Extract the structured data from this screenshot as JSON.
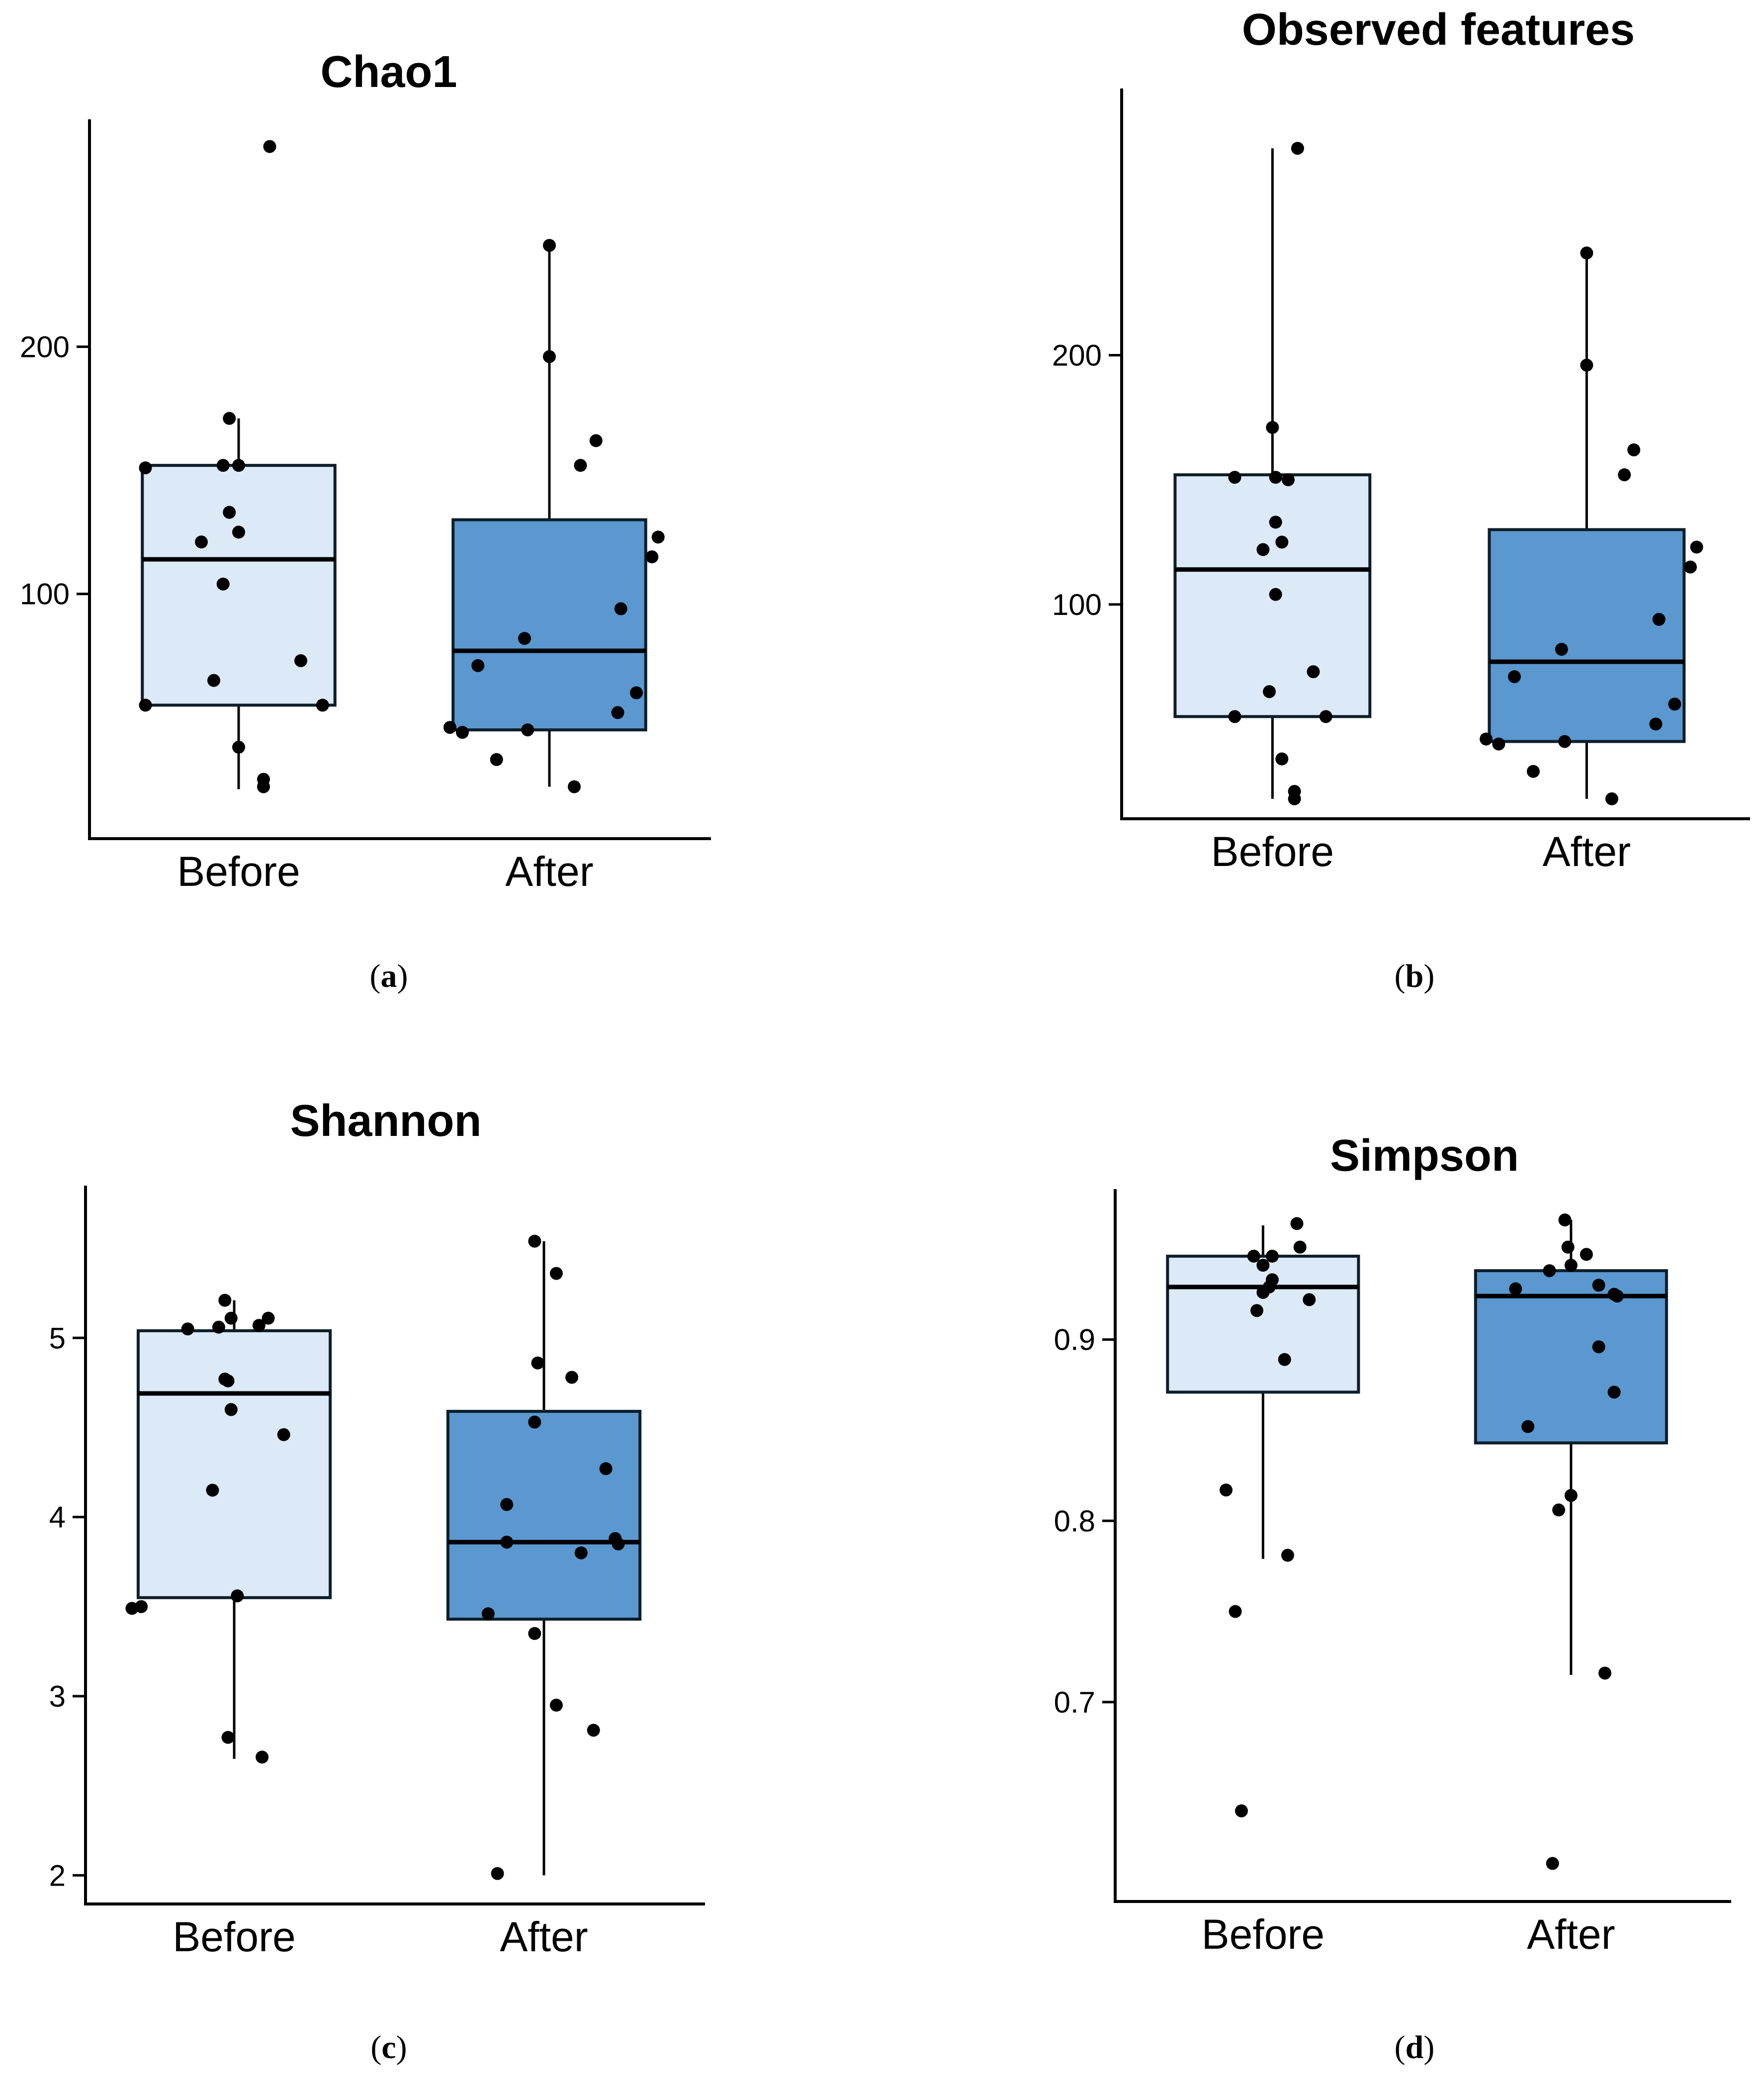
{
  "colors": {
    "before_fill": "#dce9f7",
    "after_fill": "#5a98cf",
    "point": "#000000"
  },
  "chart_data": [
    {
      "id": "a",
      "type": "box",
      "title": "Chao1",
      "caption": "a",
      "categories": [
        "Before",
        "After"
      ],
      "yticks": [
        100,
        200
      ],
      "ylim": [
        1,
        292
      ],
      "boxes": [
        {
          "name": "Before",
          "q1": 55,
          "median": 114,
          "q3": 152,
          "whisker_low": 21,
          "whisker_high": 171
        },
        {
          "name": "After",
          "q1": 45,
          "median": 77,
          "q3": 130,
          "whisker_low": 22,
          "whisker_high": 241
        }
      ],
      "points": [
        [
          {
            "j": -0.3,
            "y": 151
          },
          {
            "j": -0.05,
            "y": 152
          },
          {
            "j": 0.0,
            "y": 152
          },
          {
            "j": -0.03,
            "y": 171
          },
          {
            "j": 0.1,
            "y": 281
          },
          {
            "j": -0.03,
            "y": 133
          },
          {
            "j": 0.0,
            "y": 125
          },
          {
            "j": -0.12,
            "y": 121
          },
          {
            "j": -0.05,
            "y": 104
          },
          {
            "j": 0.2,
            "y": 73
          },
          {
            "j": -0.08,
            "y": 65
          },
          {
            "j": -0.3,
            "y": 55
          },
          {
            "j": 0.27,
            "y": 55
          },
          {
            "j": 0.0,
            "y": 38
          },
          {
            "j": 0.08,
            "y": 25
          },
          {
            "j": 0.08,
            "y": 22
          }
        ],
        [
          {
            "j": 0.0,
            "y": 241
          },
          {
            "j": 0.0,
            "y": 196
          },
          {
            "j": 0.15,
            "y": 162
          },
          {
            "j": 0.1,
            "y": 152
          },
          {
            "j": 0.35,
            "y": 123
          },
          {
            "j": 0.33,
            "y": 115
          },
          {
            "j": 0.23,
            "y": 94
          },
          {
            "j": -0.08,
            "y": 82
          },
          {
            "j": -0.23,
            "y": 71
          },
          {
            "j": 0.28,
            "y": 60
          },
          {
            "j": 0.22,
            "y": 52
          },
          {
            "j": -0.32,
            "y": 46
          },
          {
            "j": -0.28,
            "y": 44
          },
          {
            "j": -0.07,
            "y": 45
          },
          {
            "j": -0.17,
            "y": 33
          },
          {
            "j": 0.08,
            "y": 22
          }
        ]
      ]
    },
    {
      "id": "b",
      "type": "box",
      "title": "Observed features",
      "caption": "b",
      "categories": [
        "Before",
        "After"
      ],
      "yticks": [
        100,
        200
      ],
      "ylim": [
        14,
        307
      ],
      "boxes": [
        {
          "name": "Before",
          "q1": 55,
          "median": 114,
          "q3": 152,
          "whisker_low": 22,
          "whisker_high": 283
        },
        {
          "name": "After",
          "q1": 45,
          "median": 77,
          "q3": 130,
          "whisker_low": 22,
          "whisker_high": 241
        }
      ],
      "points": [
        [
          {
            "j": 0.08,
            "y": 283
          },
          {
            "j": 0.0,
            "y": 171
          },
          {
            "j": -0.12,
            "y": 151
          },
          {
            "j": 0.01,
            "y": 151
          },
          {
            "j": 0.05,
            "y": 150
          },
          {
            "j": 0.01,
            "y": 133
          },
          {
            "j": 0.03,
            "y": 125
          },
          {
            "j": -0.03,
            "y": 122
          },
          {
            "j": 0.01,
            "y": 104
          },
          {
            "j": 0.13,
            "y": 73
          },
          {
            "j": -0.01,
            "y": 65
          },
          {
            "j": -0.12,
            "y": 55
          },
          {
            "j": 0.17,
            "y": 55
          },
          {
            "j": 0.03,
            "y": 38
          },
          {
            "j": 0.07,
            "y": 25
          },
          {
            "j": 0.07,
            "y": 22
          }
        ],
        [
          {
            "j": 0.0,
            "y": 241
          },
          {
            "j": 0.0,
            "y": 196
          },
          {
            "j": 0.15,
            "y": 162
          },
          {
            "j": 0.12,
            "y": 152
          },
          {
            "j": 0.35,
            "y": 123
          },
          {
            "j": 0.33,
            "y": 115
          },
          {
            "j": 0.23,
            "y": 94
          },
          {
            "j": -0.08,
            "y": 82
          },
          {
            "j": -0.23,
            "y": 71
          },
          {
            "j": 0.28,
            "y": 60
          },
          {
            "j": 0.22,
            "y": 52
          },
          {
            "j": -0.32,
            "y": 46
          },
          {
            "j": -0.28,
            "y": 44
          },
          {
            "j": -0.07,
            "y": 45
          },
          {
            "j": -0.17,
            "y": 33
          },
          {
            "j": 0.08,
            "y": 22
          }
        ]
      ]
    },
    {
      "id": "c",
      "type": "box",
      "title": "Shannon",
      "caption": "c",
      "categories": [
        "Before",
        "After"
      ],
      "yticks": [
        2,
        3,
        4,
        5
      ],
      "ylim": [
        1.84,
        5.85
      ],
      "boxes": [
        {
          "name": "Before",
          "q1": 3.55,
          "median": 4.69,
          "q3": 5.04,
          "whisker_low": 2.65,
          "whisker_high": 5.21
        },
        {
          "name": "After",
          "q1": 3.43,
          "median": 3.86,
          "q3": 4.59,
          "whisker_low": 2.0,
          "whisker_high": 5.54
        }
      ],
      "points": [
        [
          {
            "j": -0.03,
            "y": 5.21
          },
          {
            "j": -0.15,
            "y": 5.05
          },
          {
            "j": -0.05,
            "y": 5.06
          },
          {
            "j": -0.01,
            "y": 5.11
          },
          {
            "j": 0.08,
            "y": 5.07
          },
          {
            "j": 0.11,
            "y": 5.11
          },
          {
            "j": -0.03,
            "y": 4.77
          },
          {
            "j": -0.02,
            "y": 4.76
          },
          {
            "j": -0.01,
            "y": 4.6
          },
          {
            "j": 0.16,
            "y": 4.46
          },
          {
            "j": -0.07,
            "y": 4.15
          },
          {
            "j": 0.01,
            "y": 3.56
          },
          {
            "j": -0.33,
            "y": 3.49
          },
          {
            "j": -0.3,
            "y": 3.5
          },
          {
            "j": -0.02,
            "y": 2.77
          },
          {
            "j": 0.09,
            "y": 2.66
          }
        ],
        [
          {
            "j": -0.03,
            "y": 5.54
          },
          {
            "j": 0.04,
            "y": 5.36
          },
          {
            "j": -0.02,
            "y": 4.86
          },
          {
            "j": 0.09,
            "y": 4.78
          },
          {
            "j": -0.03,
            "y": 4.53
          },
          {
            "j": 0.2,
            "y": 4.27
          },
          {
            "j": -0.12,
            "y": 4.07
          },
          {
            "j": 0.23,
            "y": 3.88
          },
          {
            "j": 0.24,
            "y": 3.85
          },
          {
            "j": -0.12,
            "y": 3.86
          },
          {
            "j": 0.12,
            "y": 3.8
          },
          {
            "j": -0.18,
            "y": 3.46
          },
          {
            "j": -0.03,
            "y": 3.35
          },
          {
            "j": 0.04,
            "y": 2.95
          },
          {
            "j": 0.16,
            "y": 2.81
          },
          {
            "j": -0.15,
            "y": 2.01
          }
        ]
      ]
    },
    {
      "id": "d",
      "type": "box",
      "title": "Simpson",
      "caption": "d",
      "categories": [
        "Before",
        "After"
      ],
      "yticks": [
        0.7,
        0.8,
        0.9
      ],
      "ylim": [
        0.59,
        0.983
      ],
      "boxes": [
        {
          "name": "Before",
          "q1": 0.871,
          "median": 0.929,
          "q3": 0.946,
          "whisker_low": 0.779,
          "whisker_high": 0.963
        },
        {
          "name": "After",
          "q1": 0.843,
          "median": 0.924,
          "q3": 0.938,
          "whisker_low": 0.715,
          "whisker_high": 0.966
        }
      ],
      "points": [
        [
          {
            "j": 0.11,
            "y": 0.964
          },
          {
            "j": 0.12,
            "y": 0.951
          },
          {
            "j": -0.03,
            "y": 0.946
          },
          {
            "j": 0.03,
            "y": 0.946
          },
          {
            "j": 0.0,
            "y": 0.941
          },
          {
            "j": 0.03,
            "y": 0.933
          },
          {
            "j": 0.02,
            "y": 0.929
          },
          {
            "j": 0.0,
            "y": 0.926
          },
          {
            "j": 0.15,
            "y": 0.922
          },
          {
            "j": -0.02,
            "y": 0.916
          },
          {
            "j": 0.07,
            "y": 0.889
          },
          {
            "j": -0.12,
            "y": 0.817
          },
          {
            "j": 0.08,
            "y": 0.781
          },
          {
            "j": -0.09,
            "y": 0.75
          },
          {
            "j": -0.07,
            "y": 0.64
          }
        ],
        [
          {
            "j": -0.02,
            "y": 0.966
          },
          {
            "j": -0.01,
            "y": 0.951
          },
          {
            "j": 0.05,
            "y": 0.947
          },
          {
            "j": -0.07,
            "y": 0.938
          },
          {
            "j": 0.0,
            "y": 0.941
          },
          {
            "j": -0.18,
            "y": 0.928
          },
          {
            "j": 0.09,
            "y": 0.93
          },
          {
            "j": 0.14,
            "y": 0.925
          },
          {
            "j": 0.15,
            "y": 0.924
          },
          {
            "j": 0.09,
            "y": 0.896
          },
          {
            "j": 0.14,
            "y": 0.871
          },
          {
            "j": -0.14,
            "y": 0.852
          },
          {
            "j": 0.0,
            "y": 0.814
          },
          {
            "j": -0.04,
            "y": 0.806
          },
          {
            "j": 0.11,
            "y": 0.716
          },
          {
            "j": -0.06,
            "y": 0.611
          }
        ]
      ]
    }
  ]
}
